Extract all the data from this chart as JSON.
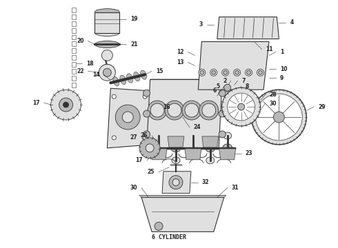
{
  "background_color": "#ffffff",
  "line_color": "#333333",
  "text_color": "#222222",
  "caption": "6 CYLINDER",
  "caption_fontsize": 6,
  "fig_width": 4.9,
  "fig_height": 3.6,
  "dpi": 100
}
